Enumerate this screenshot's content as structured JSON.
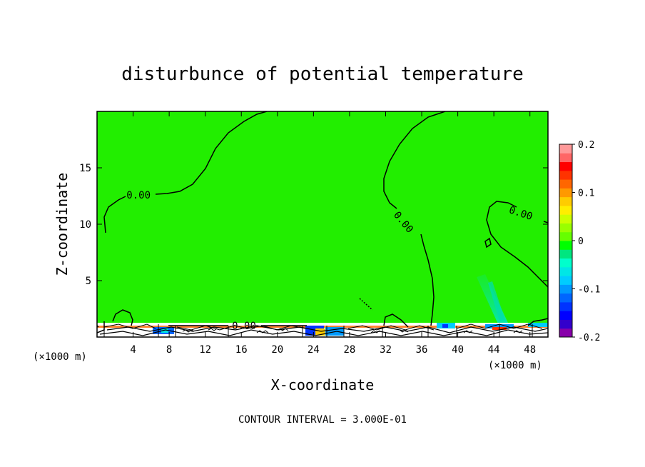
{
  "chart_data": {
    "type": "heatmap",
    "title": "disturbunce of potential temperature",
    "xlabel": "X-coordinate",
    "ylabel": "Z-coordinate",
    "x_unit": "(×1000 m)",
    "x_unit_right": "(×1000 m)",
    "xlim": [
      0,
      50
    ],
    "ylim": [
      0,
      20
    ],
    "x_ticks": [
      4,
      8,
      12,
      16,
      20,
      24,
      28,
      32,
      36,
      40,
      44,
      48
    ],
    "y_ticks": [
      5,
      10,
      15
    ],
    "colorbar": {
      "min": -0.2,
      "max": 0.2,
      "ticks": [
        0.2,
        0.1,
        0,
        -0.1,
        -0.2
      ],
      "tick_labels": [
        "0.2",
        "0.1",
        "0",
        "-0.1",
        "-0.2"
      ],
      "colors": [
        "#8800aa",
        "#3300cc",
        "#0000ff",
        "#0033ff",
        "#0066ff",
        "#0099ff",
        "#00ccff",
        "#00e6e6",
        "#00ffcc",
        "#00e680",
        "#00ff00",
        "#66ff00",
        "#99ff00",
        "#ccff00",
        "#ffee00",
        "#ffcc00",
        "#ff9900",
        "#ff6600",
        "#ff3300",
        "#ff0000",
        "#ff6666",
        "#ff9999"
      ]
    },
    "background_color": "#22ee00",
    "contour_labels": [
      {
        "text": "0.00",
        "x": 4.6,
        "z": 12.6
      },
      {
        "text": "0.00",
        "x": 34.0,
        "z": 10.2
      },
      {
        "text": "0.00",
        "x": 47.0,
        "z": 11.0
      },
      {
        "text": "0.00",
        "x": 16.3,
        "z": 1.0
      }
    ],
    "contour_interval_note": "CONTOUR INTERVAL = 3.000E-01"
  }
}
